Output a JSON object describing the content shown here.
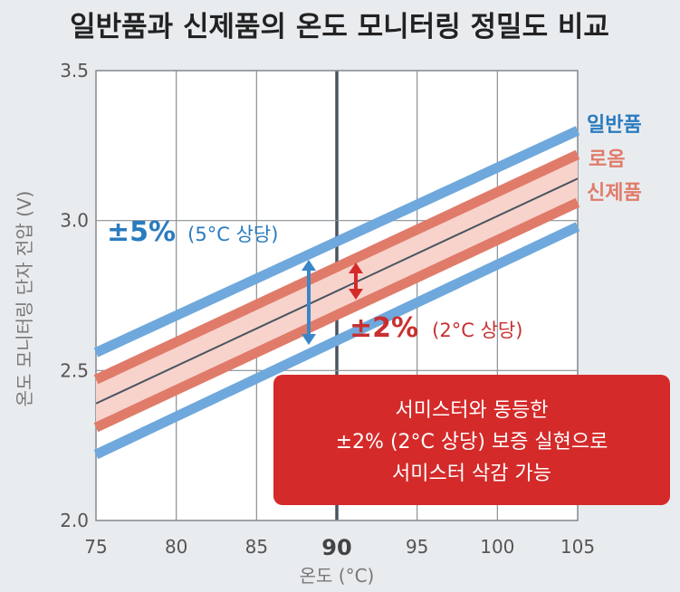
{
  "chart_data": {
    "type": "line",
    "title": "일반품과 신제품의 온도 모니터링 정밀도 비교",
    "xlabel": "온도 (°C)",
    "ylabel": "온도 모니터링 단자 전압 (V)",
    "xlim": [
      75,
      105
    ],
    "ylim": [
      2.0,
      3.5
    ],
    "xticks": [
      75,
      80,
      85,
      90,
      95,
      100,
      105
    ],
    "xtick_labels": [
      "75",
      "80",
      "85",
      "90",
      "95",
      "100",
      "105"
    ],
    "yticks": [
      2.0,
      2.5,
      3.0,
      3.5
    ],
    "ytick_labels": [
      "2.0",
      "2.5",
      "3.0",
      "3.5"
    ],
    "highlight_x": 90,
    "grid": true,
    "series": [
      {
        "name": "",
        "role": "center",
        "color": "#4a5560",
        "x": [
          75,
          105
        ],
        "y": [
          2.39,
          3.14
        ]
      },
      {
        "name": "일반품",
        "role": "limit",
        "color": "#6fa8dc",
        "x": [
          75,
          105
        ],
        "y": [
          2.56,
          3.3
        ]
      },
      {
        "name": "",
        "role": "limit",
        "color": "#6fa8dc",
        "x": [
          75,
          105
        ],
        "y": [
          2.22,
          2.98
        ]
      },
      {
        "name": "로옴 신제품",
        "role": "limit",
        "color": "#e07b6a",
        "x": [
          75,
          105
        ],
        "y": [
          2.47,
          3.22
        ]
      },
      {
        "name": "",
        "role": "limit",
        "color": "#e07b6a",
        "x": [
          75,
          105
        ],
        "y": [
          2.31,
          3.06
        ]
      }
    ],
    "band_fill": "#f7d3cc"
  },
  "labels": {
    "general": "일반품",
    "rohm_line1": "로옴",
    "rohm_line2": "신제품"
  },
  "annotations": {
    "general_pct": "±5%",
    "general_equiv": "(5°C 상당)",
    "new_pct": "±2%",
    "new_equiv": "(2°C 상당)"
  },
  "callout": {
    "line1": "서미스터와 동등한",
    "line2": "±2% (2°C 상당) 보증 실현으로",
    "line3": "서미스터 삭감 가능"
  },
  "colors": {
    "blue": "#3a86c8",
    "blue_text": "#2a7bbf",
    "red": "#d42a2a",
    "red_text": "#c83030",
    "rohm_text": "#e07b6a",
    "callout_bg": "#d42a2a"
  }
}
